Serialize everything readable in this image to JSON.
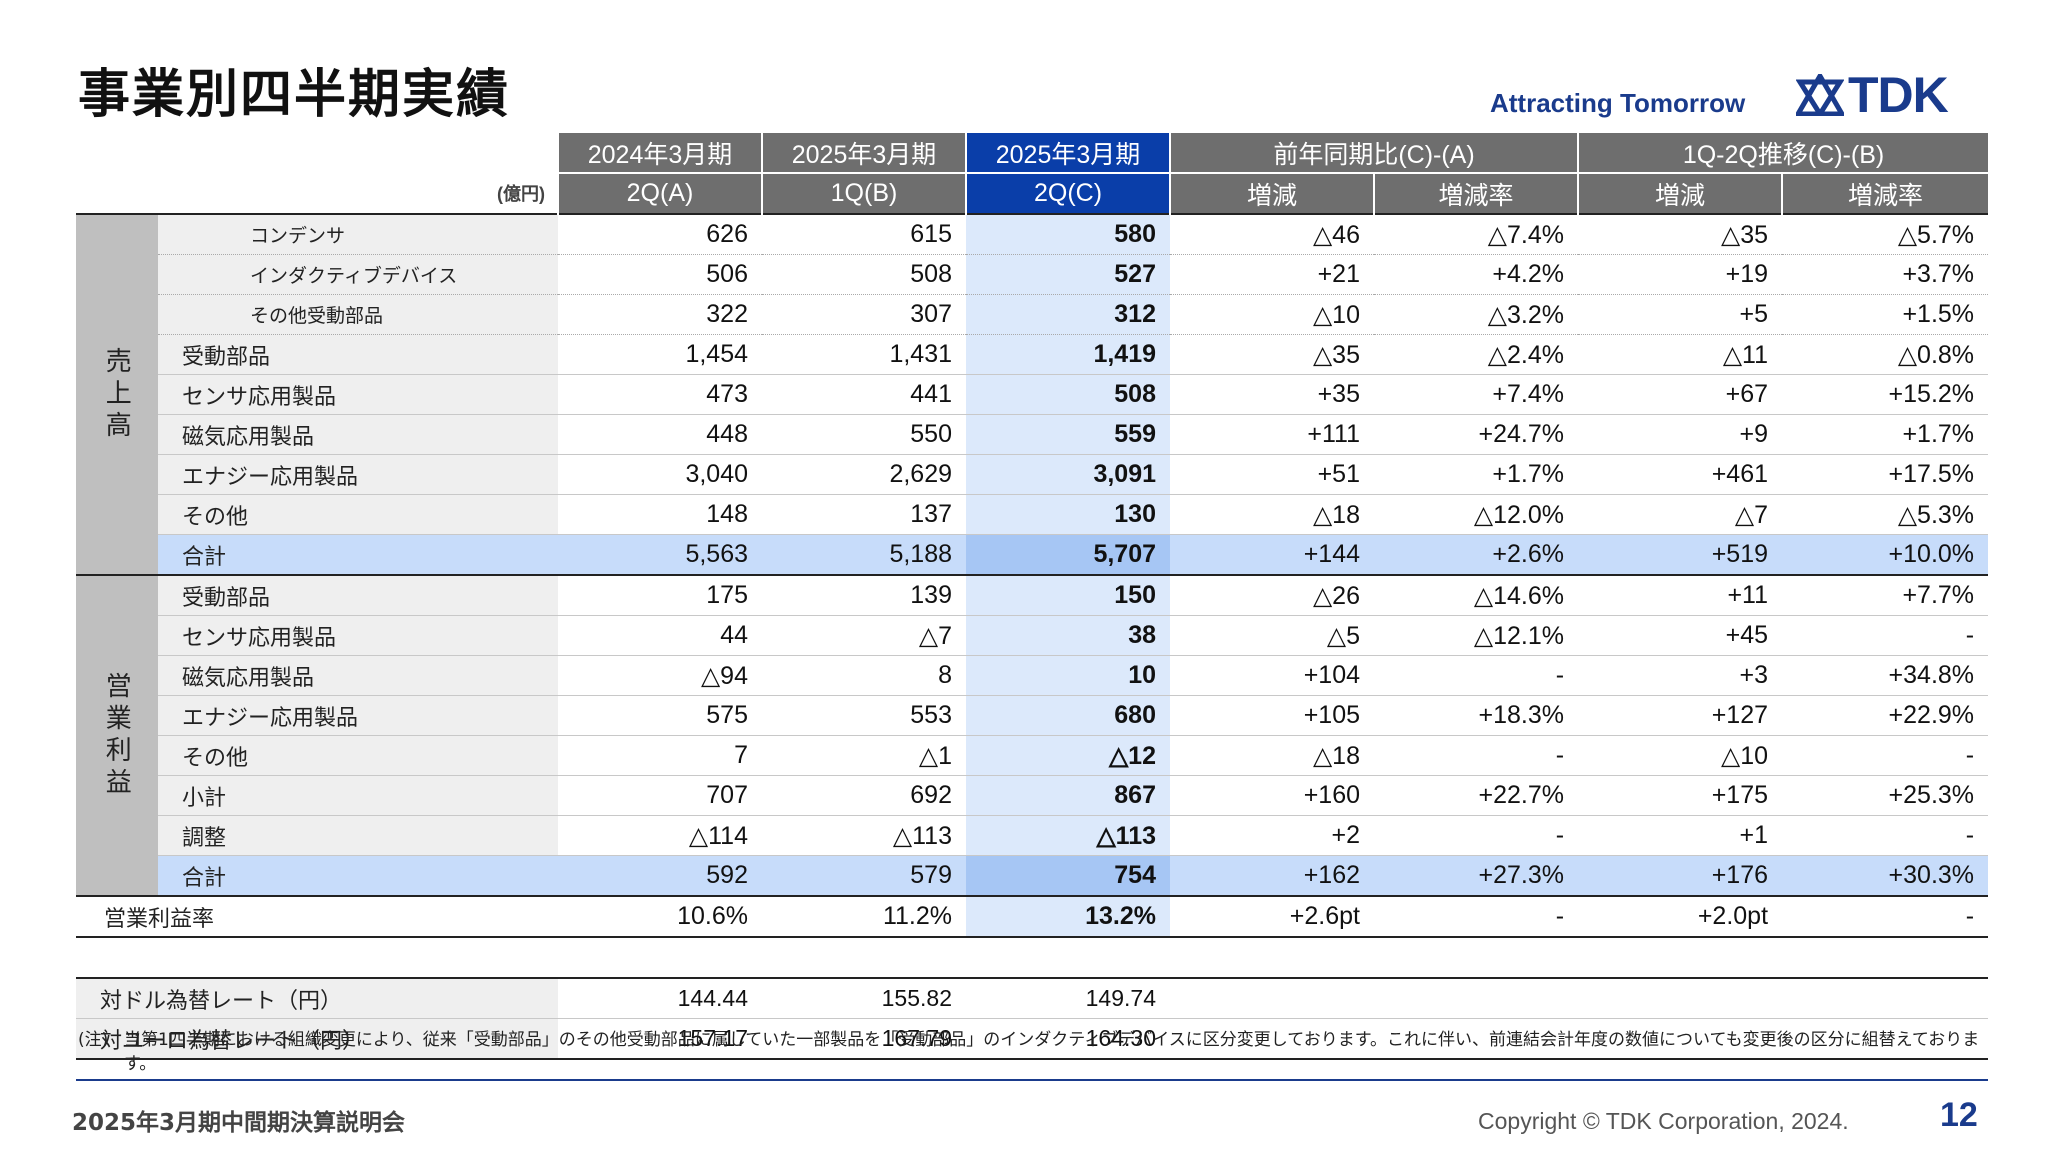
{
  "header": {
    "title": "事業別四半期実績",
    "tagline": "Attracting Tomorrow",
    "logo_text": "TDK"
  },
  "table": {
    "unit": "(億円)",
    "col_groups": [
      "2024年3月期",
      "2025年3月期",
      "2025年3月期",
      "前年同期比(C)-(A)",
      "1Q-2Q推移(C)-(B)"
    ],
    "col_subs": [
      "2Q(A)",
      "1Q(B)",
      "2Q(C)",
      "増減",
      "増減率",
      "増減",
      "増減率"
    ],
    "sales_group": "売上高",
    "profit_group": "営業利益",
    "sales": [
      {
        "label": "コンデンサ",
        "values": [
          "626",
          "615",
          "580",
          "△46",
          "△7.4%",
          "△35",
          "△5.7%"
        ]
      },
      {
        "label": "インダクティブデバイス",
        "values": [
          "506",
          "508",
          "527",
          "+21",
          "+4.2%",
          "+19",
          "+3.7%"
        ]
      },
      {
        "label": "その他受動部品",
        "values": [
          "322",
          "307",
          "312",
          "△10",
          "△3.2%",
          "+5",
          "+1.5%"
        ]
      },
      {
        "label": "受動部品",
        "values": [
          "1,454",
          "1,431",
          "1,419",
          "△35",
          "△2.4%",
          "△11",
          "△0.8%"
        ]
      },
      {
        "label": "センサ応用製品",
        "values": [
          "473",
          "441",
          "508",
          "+35",
          "+7.4%",
          "+67",
          "+15.2%"
        ]
      },
      {
        "label": "磁気応用製品",
        "values": [
          "448",
          "550",
          "559",
          "+111",
          "+24.7%",
          "+9",
          "+1.7%"
        ]
      },
      {
        "label": "エナジー応用製品",
        "values": [
          "3,040",
          "2,629",
          "3,091",
          "+51",
          "+1.7%",
          "+461",
          "+17.5%"
        ]
      },
      {
        "label": "その他",
        "values": [
          "148",
          "137",
          "130",
          "△18",
          "△12.0%",
          "△7",
          "△5.3%"
        ]
      },
      {
        "label": "合計",
        "values": [
          "5,563",
          "5,188",
          "5,707",
          "+144",
          "+2.6%",
          "+519",
          "+10.0%"
        ]
      }
    ],
    "profit": [
      {
        "label": "受動部品",
        "values": [
          "175",
          "139",
          "150",
          "△26",
          "△14.6%",
          "+11",
          "+7.7%"
        ]
      },
      {
        "label": "センサ応用製品",
        "values": [
          "44",
          "△7",
          "38",
          "△5",
          "△12.1%",
          "+45",
          "-"
        ]
      },
      {
        "label": "磁気応用製品",
        "values": [
          "△94",
          "8",
          "10",
          "+104",
          "-",
          "+3",
          "+34.8%"
        ]
      },
      {
        "label": "エナジー応用製品",
        "values": [
          "575",
          "553",
          "680",
          "+105",
          "+18.3%",
          "+127",
          "+22.9%"
        ]
      },
      {
        "label": "その他",
        "values": [
          "7",
          "△1",
          "△12",
          "△18",
          "-",
          "△10",
          "-"
        ]
      },
      {
        "label": "小計",
        "values": [
          "707",
          "692",
          "867",
          "+160",
          "+22.7%",
          "+175",
          "+25.3%"
        ]
      },
      {
        "label": "調整",
        "values": [
          "△114",
          "△113",
          "△113",
          "+2",
          "-",
          "+1",
          "-"
        ]
      },
      {
        "label": "合計",
        "values": [
          "592",
          "579",
          "754",
          "+162",
          "+27.3%",
          "+176",
          "+30.3%"
        ]
      }
    ],
    "margin": {
      "label": "営業利益率",
      "values": [
        "10.6%",
        "11.2%",
        "13.2%",
        "+2.6pt",
        "-",
        "+2.0pt",
        "-"
      ]
    },
    "fx": [
      {
        "label": "対ドル為替レート（円）",
        "values": [
          "144.44",
          "155.82",
          "149.74"
        ]
      },
      {
        "label": "対ユーロ為替レート（円）",
        "values": [
          "157.17",
          "167.79",
          "164.30"
        ]
      }
    ]
  },
  "note": {
    "tag": "(注)",
    "text": "当第1四半期における組織変更により、従来「受動部品」のその他受動部品に属していた一部製品を「受動部品」のインダクティブデバイスに区分変更しております。これに伴い、前連結会計年度の数値についても変更後の区分に組替えております。"
  },
  "footer": {
    "event": "2025年3月期中間期決算説明会",
    "copyright": "Copyright  © TDK Corporation, 2024.",
    "page": "12"
  },
  "colors": {
    "brand": "#1a3b8c",
    "header_gray": "#6e6e6e",
    "header_blue": "#0a3ea9"
  }
}
